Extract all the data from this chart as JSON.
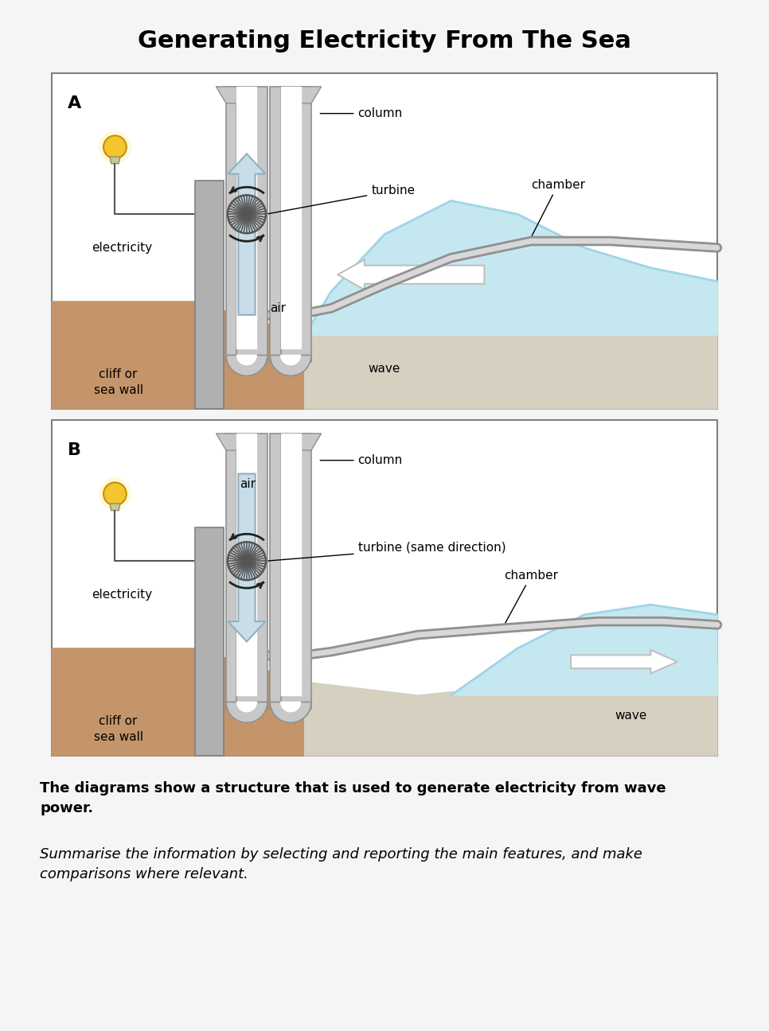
{
  "title": "Generating Electricity From The Sea",
  "title_fontsize": 22,
  "bg_color": "#f5f5f5",
  "panel_bg": "#ffffff",
  "sea_light": "#c5e8f0",
  "sea_mid": "#a0d4e8",
  "ground_color": "#c4956a",
  "floor_color": "#d5d0c0",
  "wall_color": "#b0b0b0",
  "column_color": "#c8c8c8",
  "chamber_outer": "#a8a8a8",
  "chamber_inner": "#d8d8d8",
  "arrow_fill": "#c8dde8",
  "arrow_edge": "#90b0c0",
  "turbine_color": "#555555",
  "rotation_color": "#222222",
  "bulb_color": "#f5c530",
  "bulb_edge": "#c89000",
  "wire_color": "#555555",
  "bold_text": "The diagrams show a structure that is used to generate electricity from wave\npower.",
  "italic_text": "Summarise the information by selecting and reporting the main features, and make\ncomparisons where relevant.",
  "desc_fontsize": 13,
  "label_fontsize": 16,
  "annot_fontsize": 11
}
